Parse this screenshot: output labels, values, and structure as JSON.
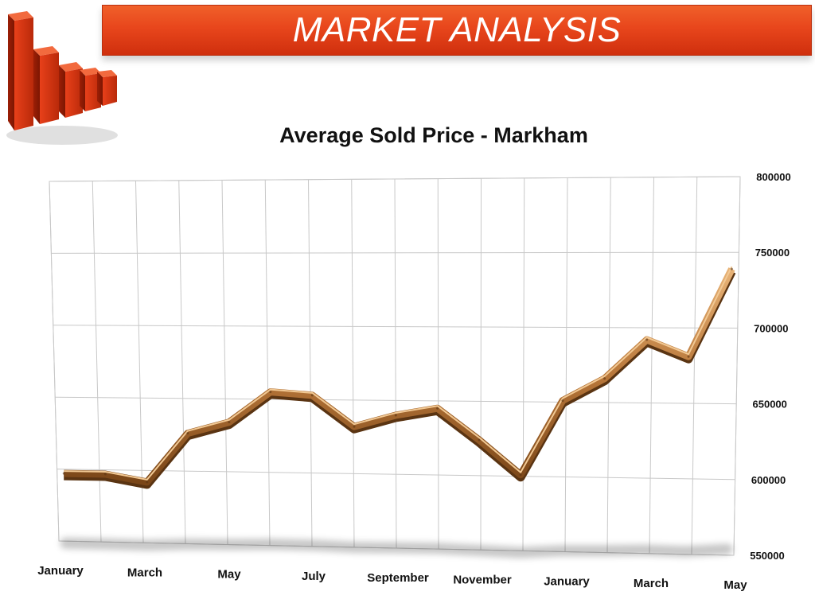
{
  "header": {
    "banner_title": "MARKET ANALYSIS"
  },
  "chart_data": {
    "type": "line",
    "title": "Average Sold Price - Markham",
    "xlabel": "",
    "ylabel": "",
    "x_tick_labels": [
      "January",
      "March",
      "May",
      "July",
      "September",
      "November",
      "January",
      "March",
      "May"
    ],
    "y_tick_labels": [
      "550000",
      "600000",
      "650000",
      "700000",
      "750000",
      "800000"
    ],
    "ylim": [
      550000,
      800000
    ],
    "grid": true,
    "points": 17,
    "values": [
      597000,
      597000,
      592000,
      626000,
      634000,
      655000,
      653000,
      632000,
      640000,
      645000,
      624000,
      601000,
      651000,
      666000,
      692000,
      681000,
      739000
    ],
    "colors": {
      "line": "#b8773a",
      "line_dark": "#5a3412",
      "banner": "#e8461c",
      "grid": "#c8c8c8"
    }
  }
}
